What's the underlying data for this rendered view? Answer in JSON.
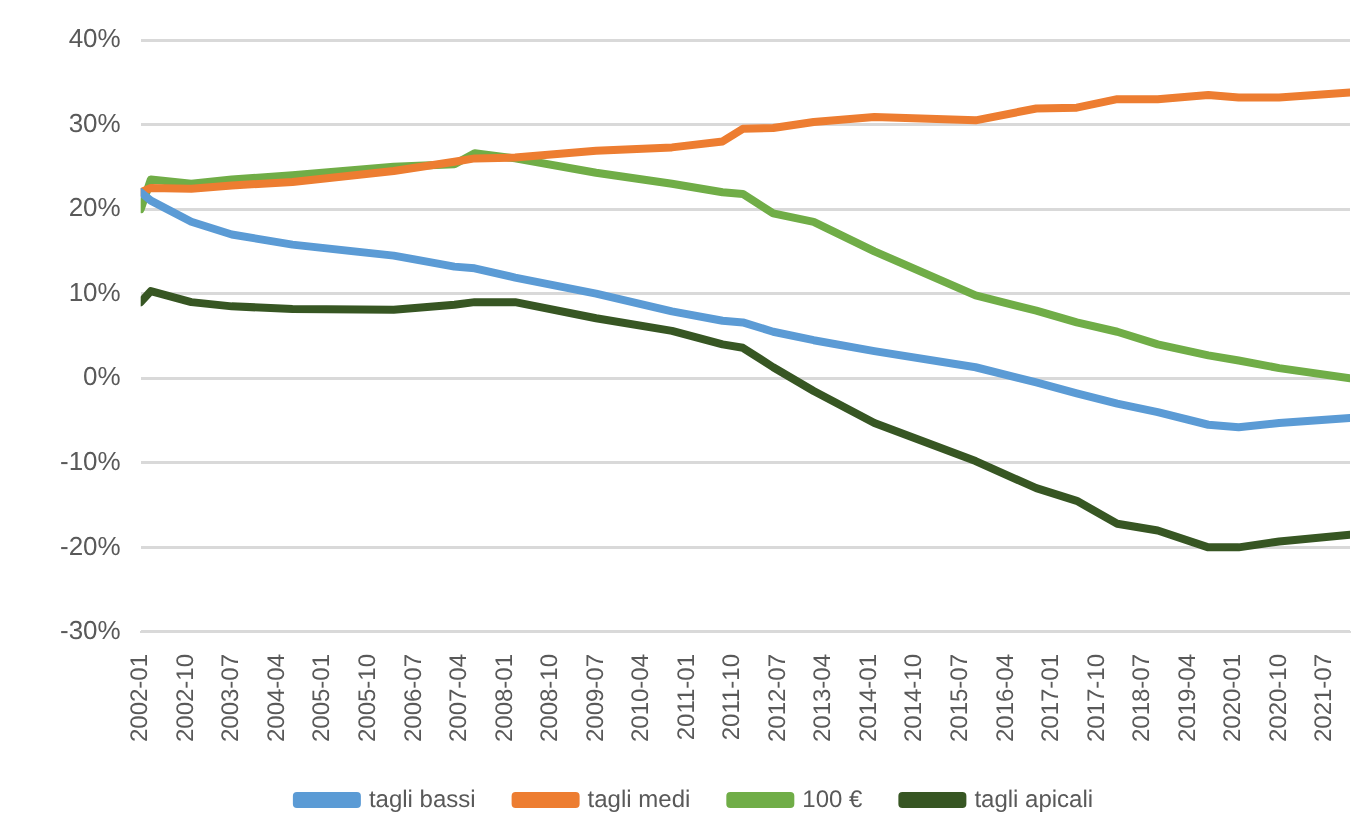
{
  "chart_data": {
    "type": "line",
    "x": [
      "2002-01",
      "2002-03",
      "2002-11",
      "2003-07",
      "2004-07",
      "2006-03",
      "2007-03",
      "2007-07",
      "2008-03",
      "2009-07",
      "2010-10",
      "2011-08",
      "2011-12",
      "2012-06",
      "2013-02",
      "2014-02",
      "2015-10",
      "2016-10",
      "2017-06",
      "2018-02",
      "2018-10",
      "2019-08",
      "2020-02",
      "2020-10",
      "2021-12"
    ],
    "series": [
      {
        "name": "tagli bassi",
        "color": "#5b9bd5",
        "values": [
          22,
          21,
          18.5,
          17,
          15.8,
          14.5,
          13.2,
          13,
          11.9,
          10,
          7.9,
          6.8,
          6.6,
          5.5,
          4.5,
          3.2,
          1.3,
          -0.5,
          -1.8,
          -3,
          -4,
          -5.5,
          -5.8,
          -5.3,
          -4.7
        ]
      },
      {
        "name": "tagli medi",
        "color": "#ed7d31",
        "values": [
          22,
          22.5,
          22.4,
          22.8,
          23.2,
          24.5,
          25.6,
          26,
          26.1,
          26.9,
          27.3,
          28,
          29.5,
          29.6,
          30.3,
          30.9,
          30.5,
          31.9,
          32,
          33,
          33,
          33.5,
          33.2,
          33.2,
          33.8
        ]
      },
      {
        "name": "100 €",
        "color": "#70ad47",
        "values": [
          20,
          23.5,
          23,
          23.5,
          24,
          25,
          25.3,
          26.6,
          26,
          24.3,
          23,
          22,
          21.8,
          19.5,
          18.5,
          15,
          9.8,
          8,
          6.6,
          5.5,
          4,
          2.7,
          2.1,
          1.2,
          0
        ]
      },
      {
        "name": "tagli apicali",
        "color": "#375623",
        "values": [
          9,
          10.3,
          9,
          8.5,
          8.2,
          8.1,
          8.7,
          9,
          9,
          7.1,
          5.6,
          4,
          3.6,
          1.3,
          -1.5,
          -5.3,
          -9.8,
          -13,
          -14.5,
          -17.2,
          -18,
          -20,
          -20,
          -19.3,
          -18.5
        ]
      }
    ],
    "xlim": [
      "2002-01",
      "2021-12"
    ],
    "xticks": [
      "2002-01",
      "2002-10",
      "2003-07",
      "2004-04",
      "2005-01",
      "2005-10",
      "2006-07",
      "2007-04",
      "2008-01",
      "2008-10",
      "2009-07",
      "2010-04",
      "2011-01",
      "2011-10",
      "2012-07",
      "2013-04",
      "2014-01",
      "2014-10",
      "2015-07",
      "2016-04",
      "2017-01",
      "2017-10",
      "2018-07",
      "2019-04",
      "2020-01",
      "2020-10",
      "2021-07"
    ],
    "ylim": [
      -30,
      40
    ],
    "yticks": [
      {
        "value": -30,
        "label": "-30%"
      },
      {
        "value": -20,
        "label": "-20%"
      },
      {
        "value": -10,
        "label": "-10%"
      },
      {
        "value": 0,
        "label": "0%"
      },
      {
        "value": 10,
        "label": "10%"
      },
      {
        "value": 20,
        "label": "20%"
      },
      {
        "value": 30,
        "label": "30%"
      },
      {
        "value": 40,
        "label": "40%"
      }
    ],
    "grid": "y",
    "legend": "bottom",
    "marker": "none",
    "line_style": "solid"
  }
}
